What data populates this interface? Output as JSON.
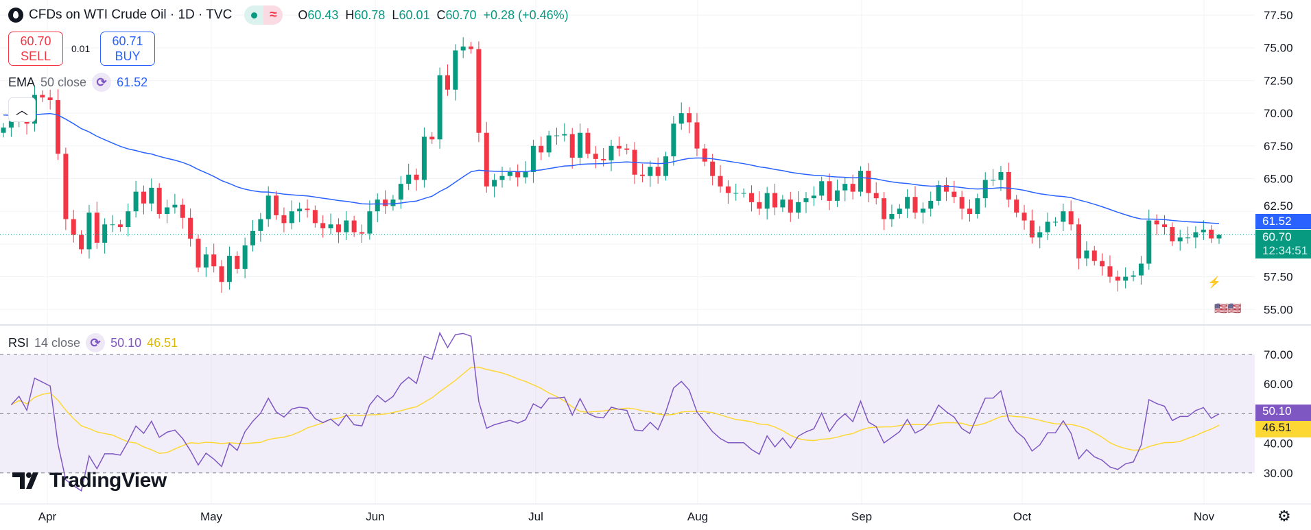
{
  "header": {
    "symbol_title": "CFDs on WTI Crude Oil · 1D · TVC",
    "market_status_open": "●",
    "market_status_icon": "≈",
    "ohlc": {
      "o_label": "O",
      "o": "60.43",
      "h_label": "H",
      "h": "60.78",
      "l_label": "L",
      "l": "60.01",
      "c_label": "C",
      "c": "60.70",
      "change": "+0.28 (+0.46%)"
    }
  },
  "trade": {
    "sell_price": "60.70",
    "sell_label": "SELL",
    "spread": "0.01",
    "buy_price": "60.71",
    "buy_label": "BUY"
  },
  "ema_legend": {
    "name": "EMA",
    "params": "50 close",
    "value": "61.52"
  },
  "rsi_legend": {
    "name": "RSI",
    "params": "14 close",
    "value": "50.10",
    "ma_value": "46.51"
  },
  "price_axis": {
    "ticks": [
      "77.50",
      "75.00",
      "72.50",
      "70.00",
      "67.50",
      "65.00",
      "62.50",
      "57.50",
      "55.00"
    ],
    "ema_label": "61.52",
    "last_price": "60.70",
    "countdown": "12:34:51"
  },
  "rsi_axis": {
    "ticks": [
      "70.00",
      "60.00",
      "40.00",
      "30.00"
    ],
    "rsi_label": "50.10",
    "ma_label": "46.51"
  },
  "time_axis": {
    "labels": [
      "Apr",
      "May",
      "Jun",
      "Jul",
      "Aug",
      "Sep",
      "Oct",
      "Nov"
    ]
  },
  "brand": {
    "logo_text": "TradingView"
  },
  "colors": {
    "up": "#089981",
    "down": "#f23645",
    "ema": "#2962ff",
    "rsi": "#7e57c2",
    "rsi_ma": "#fdd835"
  },
  "chart_data": {
    "type": "candlestick",
    "interval": "1D",
    "price_range": [
      54,
      78
    ],
    "rsi_range": [
      25,
      75
    ],
    "closes": [
      68.9,
      69.4,
      69.9,
      69.2,
      71.4,
      71.2,
      71.0,
      66.9,
      61.9,
      60.7,
      59.6,
      62.4,
      60.1,
      61.5,
      61.5,
      61.3,
      62.5,
      64.0,
      63.1,
      64.3,
      62.3,
      62.8,
      63.0,
      62.0,
      60.4,
      58.2,
      59.2,
      58.3,
      57.1,
      59.1,
      58.1,
      59.9,
      61.0,
      61.9,
      63.7,
      62.2,
      61.6,
      62.5,
      62.7,
      62.6,
      61.6,
      61.2,
      61.5,
      60.9,
      61.8,
      60.9,
      60.8,
      62.5,
      63.4,
      62.9,
      63.4,
      64.6,
      65.3,
      64.9,
      68.2,
      68.0,
      72.9,
      71.8,
      74.8,
      75.1,
      74.9,
      68.5,
      64.4,
      64.9,
      65.2,
      65.5,
      65.1,
      65.5,
      67.5,
      67.0,
      68.3,
      68.3,
      68.4,
      66.6,
      68.5,
      66.9,
      66.5,
      66.4,
      67.5,
      67.3,
      67.2,
      65.3,
      65.2,
      65.9,
      65.2,
      66.7,
      69.2,
      70.0,
      69.3,
      67.3,
      66.3,
      65.2,
      64.4,
      63.9,
      63.9,
      63.9,
      63.2,
      62.7,
      63.9,
      62.8,
      63.4,
      62.4,
      63.2,
      63.5,
      63.7,
      64.8,
      63.3,
      64.1,
      64.6,
      64.0,
      65.6,
      63.9,
      63.5,
      61.9,
      62.3,
      62.7,
      63.6,
      62.4,
      62.7,
      63.3,
      64.5,
      64.0,
      63.6,
      62.7,
      62.3,
      63.5,
      64.9,
      64.9,
      65.5,
      63.4,
      62.4,
      61.8,
      60.5,
      60.9,
      61.7,
      61.7,
      62.5,
      61.5,
      58.9,
      59.5,
      58.7,
      58.3,
      57.5,
      57.2,
      57.5,
      57.6,
      58.5,
      61.8,
      61.5,
      61.3,
      60.2,
      60.5,
      60.5,
      60.9,
      61.1,
      60.43,
      60.7
    ],
    "last": {
      "open": 60.43,
      "high": 60.78,
      "low": 60.01,
      "close": 60.7
    },
    "indicators": [
      "EMA 50 close",
      "RSI 14 close"
    ]
  }
}
